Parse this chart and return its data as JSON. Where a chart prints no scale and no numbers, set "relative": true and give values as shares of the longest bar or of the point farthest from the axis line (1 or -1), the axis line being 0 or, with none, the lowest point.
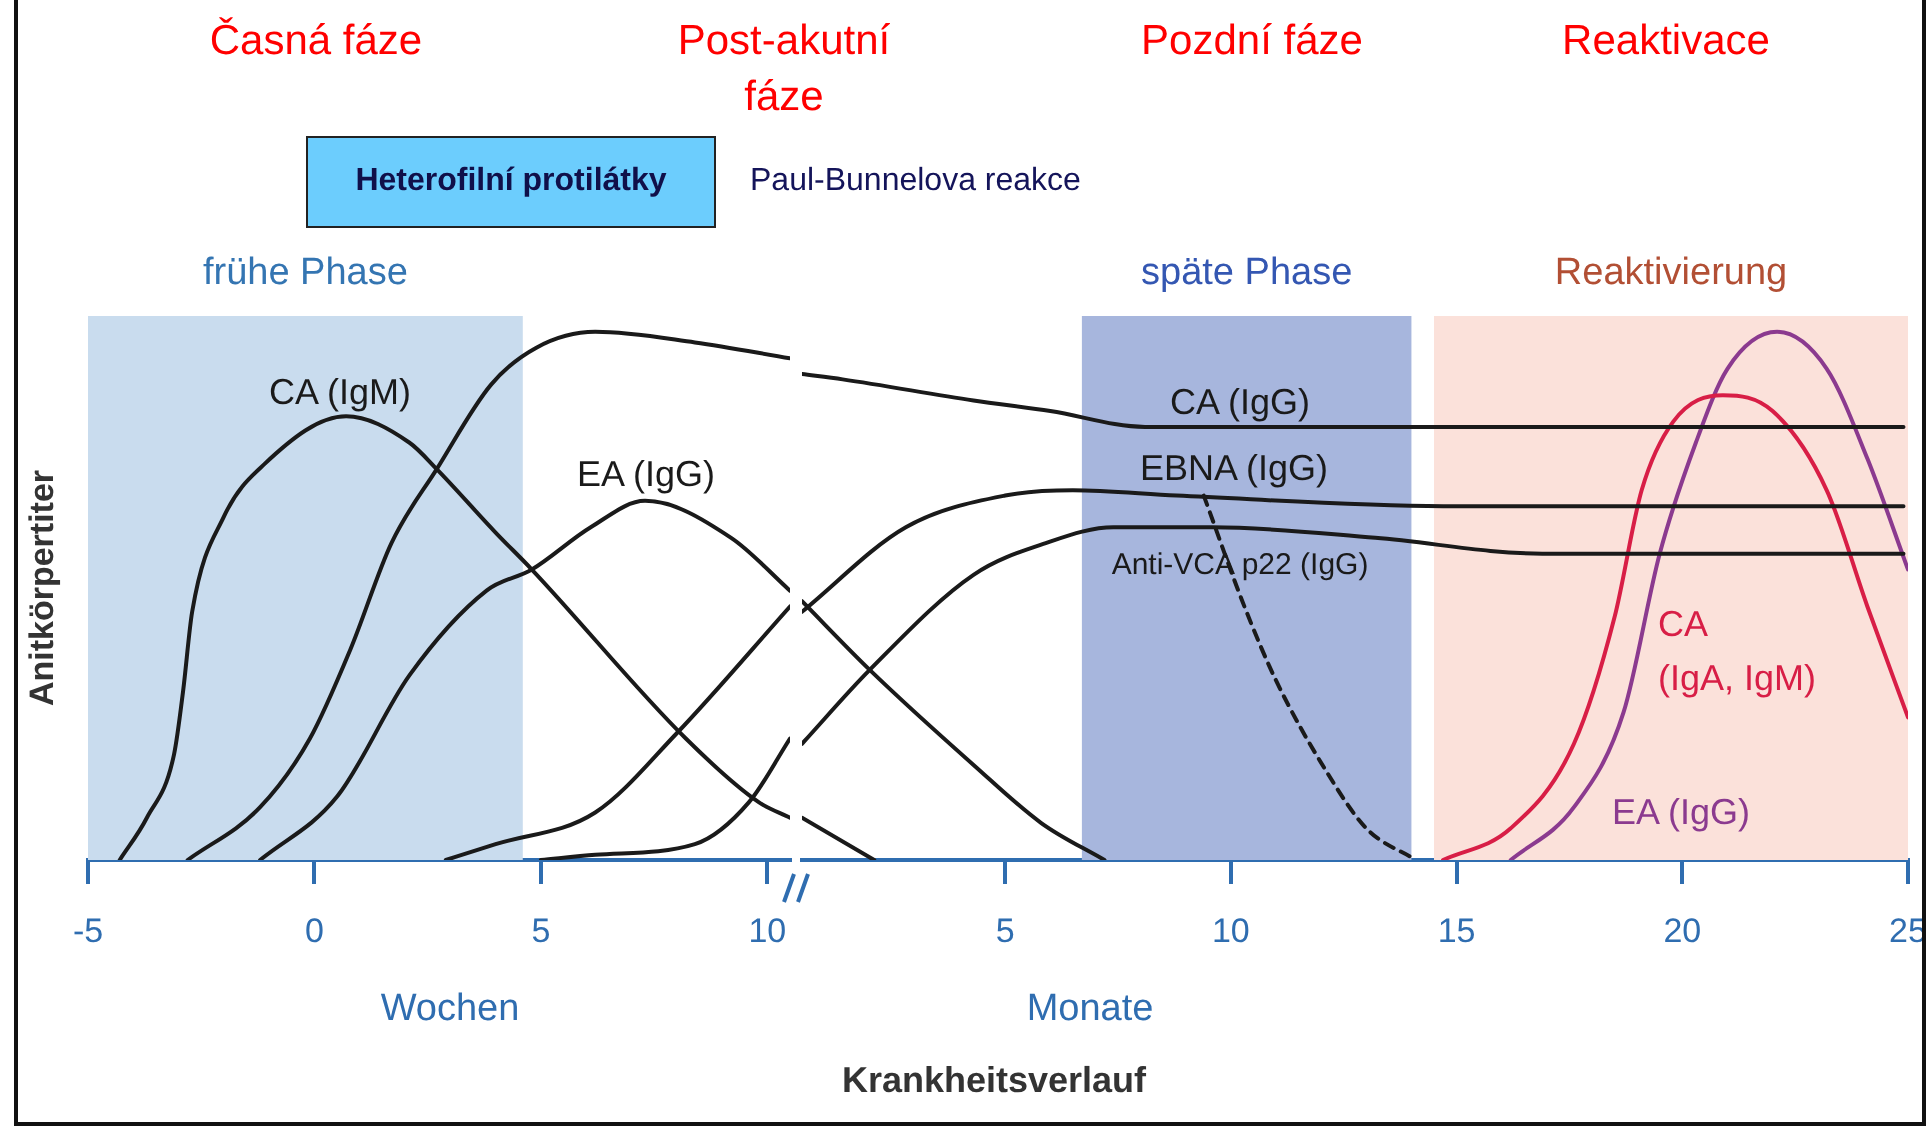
{
  "chart_data": [
    {
      "type": "line",
      "relative": true,
      "ylabel": "Anitkörpertiter",
      "marker": "none",
      "xlim": [
        -5,
        10.5
      ],
      "xticks": [
        -5,
        0,
        5,
        10
      ],
      "annotations": [
        "Časná fáze",
        "Post-akutní fáze",
        "Heterofilní protilátky",
        "Paul-Bunnelova reakce",
        "Wochen"
      ],
      "bands": [
        {
          "axis": "x",
          "from": -5,
          "to": 4.6,
          "label": "frühe Phase",
          "color": "#c9dcee"
        }
      ],
      "series": [
        {
          "name": "CA (IgM)",
          "color": "#1a1a1a",
          "x": [
            -4.3,
            -3.7,
            -3.1,
            -2.9,
            -2.7,
            -2.0,
            -1.1,
            0.7,
            2.1,
            2.7,
            4.0,
            4.8,
            8.2,
            9.8,
            10.5
          ],
          "values": [
            0,
            0.08,
            0.2,
            0.32,
            0.47,
            0.65,
            0.75,
            0.84,
            0.79,
            0.74,
            0.62,
            0.55,
            0.23,
            0.11,
            0.08
          ]
        },
        {
          "color": "#1a1a1a",
          "x": [
            -2.8,
            -1.2,
            -0.1,
            0.8,
            1.7,
            2.7,
            3.9,
            4.9,
            6.2,
            8.4,
            10.5
          ],
          "values": [
            0,
            0.1,
            0.23,
            0.4,
            0.6,
            0.74,
            0.9,
            0.97,
            1.0,
            0.98,
            0.95
          ]
        },
        {
          "name": "EA (IgG)",
          "color": "#1a1a1a",
          "x": [
            -1.2,
            0.5,
            2.1,
            3.8,
            4.8,
            6.1,
            7.3,
            9.2,
            10.5
          ],
          "values": [
            0,
            0.12,
            0.35,
            0.51,
            0.55,
            0.63,
            0.68,
            0.61,
            0.51
          ]
        },
        {
          "color": "#1a1a1a",
          "x": [
            2.9,
            4.0,
            6.2,
            8.0,
            10.5
          ],
          "values": [
            0,
            0.03,
            0.09,
            0.24,
            0.48
          ]
        },
        {
          "color": "#1a1a1a",
          "x": [
            5.0,
            6.2,
            8.4,
            9.6,
            10.5
          ],
          "values": [
            0,
            0.01,
            0.03,
            0.11,
            0.23
          ]
        }
      ]
    },
    {
      "type": "line",
      "relative": true,
      "xlabel": "Krankheitsverlauf",
      "marker": "none",
      "xlim": [
        0.5,
        25
      ],
      "xticks": [
        5,
        10,
        15,
        20,
        25
      ],
      "annotations": [
        "Pozdní fáze",
        "Reaktivace",
        "Monate"
      ],
      "bands": [
        {
          "axis": "x",
          "from": 6.7,
          "to": 14,
          "label": "späte Phase",
          "color": "#a7b6dd"
        },
        {
          "axis": "x",
          "from": 14.5,
          "to": 25,
          "label": "Reaktivierung",
          "color": "#fbe1da"
        }
      ],
      "series": [
        {
          "color": "#1a1a1a",
          "x": [
            0.5,
            2.1
          ],
          "values": [
            0.08,
            0
          ]
        },
        {
          "name": "CA (IgG)",
          "color": "#1a1a1a",
          "x": [
            0.5,
            1.4,
            4.3,
            6.0,
            8.1,
            10.3,
            24.9
          ],
          "values": [
            0.92,
            0.91,
            0.87,
            0.85,
            0.82,
            0.82,
            0.82
          ]
        },
        {
          "color": "#1a1a1a",
          "x": [
            0.5,
            2.0,
            4.3,
            5.8,
            7.2
          ],
          "values": [
            0.49,
            0.36,
            0.18,
            0.07,
            0
          ]
        },
        {
          "name": "EBNA (IgG)",
          "color": "#1a1a1a",
          "x": [
            0.5,
            2.8,
            5.0,
            6.5,
            8.8,
            14.7,
            24.9
          ],
          "values": [
            0.47,
            0.63,
            0.69,
            0.7,
            0.69,
            0.67,
            0.67
          ]
        },
        {
          "name": "Anti-VCA p22 (IgG)",
          "color": "#1a1a1a",
          "x": [
            0.5,
            2.0,
            4.3,
            5.9,
            7.4,
            9.6,
            13.2,
            16.9,
            24.9
          ],
          "values": [
            0.22,
            0.36,
            0.54,
            0.6,
            0.63,
            0.63,
            0.61,
            0.58,
            0.58
          ]
        },
        {
          "color": "#1a1a1a",
          "line_style": "dashed",
          "x": [
            9.4,
            10.3,
            11.0,
            12.1,
            13.0,
            14.1
          ],
          "values": [
            0.69,
            0.48,
            0.34,
            0.17,
            0.06,
            0
          ]
        },
        {
          "name": "CA (IgA, IgM)",
          "color": "#d81e46",
          "x": [
            14.7,
            16.2,
            17.6,
            18.5,
            19.1,
            19.8,
            20.9,
            22.0,
            23.2,
            24.1,
            25.0
          ],
          "values": [
            0,
            0.06,
            0.22,
            0.46,
            0.7,
            0.83,
            0.88,
            0.85,
            0.7,
            0.48,
            0.27
          ]
        },
        {
          "name": "EA (IgG)",
          "color": "#8b3a8f",
          "x": [
            16.2,
            17.6,
            18.7,
            19.5,
            20.3,
            21.0,
            22.1,
            23.2,
            24.1,
            25.0
          ],
          "values": [
            0,
            0.1,
            0.28,
            0.58,
            0.79,
            0.93,
            1.0,
            0.93,
            0.76,
            0.55
          ]
        }
      ]
    }
  ]
}
